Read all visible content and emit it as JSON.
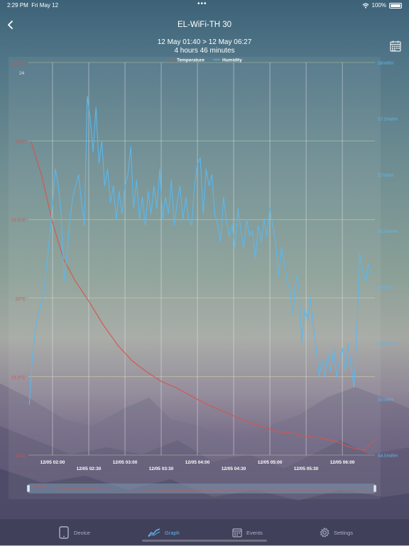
{
  "status": {
    "time": "2:29 PM",
    "date": "Fri May 12",
    "dots": "•••",
    "battery": "100%"
  },
  "nav": {
    "title": "EL-WiFi-TH 30",
    "back_icon": "chevron-left-icon"
  },
  "range": {
    "line1": "12 May  01:40 > 12 May  06:27",
    "line2": "4 hours 46 minutes"
  },
  "calendar_icon": "calendar-icon",
  "colors": {
    "temperature": "#d6544e",
    "humidity": "#5ab8ee",
    "grid": "#d8e2a8",
    "active_tab": "#5fb3e8",
    "inactive_tab": "#a9b1c3"
  },
  "tabs": [
    {
      "label": "Device",
      "icon": "tablet-icon"
    },
    {
      "label": "Graph",
      "icon": "chart-line-icon",
      "active": true
    },
    {
      "label": "Events",
      "icon": "calendar-icon"
    },
    {
      "label": "Settings",
      "icon": "gear-icon"
    }
  ],
  "chart_data": {
    "type": "line",
    "legend": [
      "Temperature",
      "Humidity"
    ],
    "legend_position": "top-center",
    "grid": true,
    "x_ticks": [
      "12/05 02:00",
      "12/05 02:30",
      "12/05 03:00",
      "12/05 03:30",
      "12/05 04:00",
      "12/05 04:30",
      "12/05 05:00",
      "12/05 05:30",
      "12/05 06:00"
    ],
    "x_range_hours": [
      1.667,
      6.45
    ],
    "x_tick_hours": [
      2.0,
      2.5,
      3.0,
      3.5,
      4.0,
      4.5,
      5.0,
      5.5,
      6.0
    ],
    "y_left_ticks": [
      "23.5°C",
      "23°C",
      "22.5°C",
      "22°C",
      "21.5°C",
      "21°C"
    ],
    "y_left_extra": "24",
    "y_left_range": [
      21,
      23.5
    ],
    "y_right_ticks": [
      "58%RH",
      "57.5%RH",
      "57%RH",
      "56.5%RH",
      "56%RH",
      "55.5%RH",
      "55%RH",
      "54.5%RH"
    ],
    "y_right_range": [
      54.5,
      58
    ],
    "series": [
      {
        "name": "Temperature",
        "axis": "left",
        "x": [
          1.7,
          1.85,
          2.0,
          2.15,
          2.3,
          2.5,
          2.7,
          2.9,
          3.1,
          3.3,
          3.5,
          3.7,
          3.9,
          4.1,
          4.3,
          4.5,
          4.7,
          4.9,
          5.1,
          5.3,
          5.5,
          5.7,
          5.9,
          6.1,
          6.3,
          6.45
        ],
        "y": [
          23.0,
          22.78,
          22.48,
          22.25,
          22.12,
          21.98,
          21.83,
          21.7,
          21.6,
          21.53,
          21.47,
          21.43,
          21.38,
          21.33,
          21.29,
          21.25,
          21.21,
          21.18,
          21.15,
          21.14,
          21.12,
          21.11,
          21.09,
          21.05,
          21.03,
          21.1
        ]
      },
      {
        "name": "Humidity",
        "axis": "right",
        "x": [
          1.68,
          1.72,
          1.76,
          1.8,
          1.84,
          1.88,
          1.92,
          1.96,
          2.0,
          2.04,
          2.08,
          2.12,
          2.16,
          2.2,
          2.24,
          2.28,
          2.32,
          2.36,
          2.4,
          2.44,
          2.48,
          2.52,
          2.56,
          2.6,
          2.64,
          2.68,
          2.72,
          2.76,
          2.8,
          2.84,
          2.88,
          2.92,
          2.96,
          3.0,
          3.04,
          3.08,
          3.12,
          3.16,
          3.2,
          3.24,
          3.28,
          3.32,
          3.36,
          3.4,
          3.44,
          3.48,
          3.52,
          3.56,
          3.6,
          3.64,
          3.68,
          3.72,
          3.76,
          3.8,
          3.84,
          3.88,
          3.92,
          3.96,
          4.0,
          4.04,
          4.08,
          4.12,
          4.16,
          4.2,
          4.24,
          4.28,
          4.32,
          4.36,
          4.4,
          4.44,
          4.48,
          4.52,
          4.56,
          4.6,
          4.64,
          4.68,
          4.72,
          4.76,
          4.8,
          4.84,
          4.88,
          4.92,
          4.96,
          5.0,
          5.04,
          5.08,
          5.12,
          5.16,
          5.2,
          5.24,
          5.28,
          5.32,
          5.36,
          5.4,
          5.44,
          5.48,
          5.52,
          5.56,
          5.6,
          5.64,
          5.68,
          5.72,
          5.76,
          5.8,
          5.84,
          5.88,
          5.92,
          5.96,
          6.0,
          6.04,
          6.08,
          6.12,
          6.16,
          6.2,
          6.24,
          6.28,
          6.32,
          6.36,
          6.4
        ],
        "y": [
          54.95,
          55.35,
          55.6,
          55.75,
          55.85,
          55.95,
          56.2,
          56.45,
          56.75,
          57.05,
          56.9,
          56.65,
          56.05,
          56.3,
          56.6,
          56.8,
          56.9,
          57.0,
          56.75,
          56.55,
          57.7,
          57.5,
          57.2,
          57.6,
          57.1,
          57.3,
          56.9,
          57.05,
          56.75,
          56.9,
          56.6,
          56.85,
          56.65,
          56.9,
          57.0,
          57.25,
          56.7,
          56.95,
          56.6,
          56.8,
          56.55,
          56.85,
          56.65,
          56.9,
          56.7,
          57.05,
          56.6,
          56.8,
          56.65,
          56.95,
          56.55,
          56.75,
          56.9,
          56.6,
          56.8,
          56.6,
          56.55,
          56.9,
          57.1,
          57.15,
          56.65,
          57.05,
          56.9,
          57.0,
          56.65,
          56.55,
          56.4,
          56.8,
          56.6,
          56.45,
          56.55,
          56.35,
          56.7,
          56.5,
          56.35,
          56.6,
          56.45,
          56.5,
          56.25,
          56.55,
          56.4,
          56.6,
          56.45,
          56.7,
          56.55,
          56.4,
          56.1,
          56.35,
          56.2,
          56.05,
          55.95,
          55.75,
          56.1,
          56.0,
          55.5,
          55.8,
          55.7,
          55.9,
          55.65,
          55.45,
          55.2,
          55.35,
          55.2,
          55.4,
          55.25,
          55.45,
          55.2,
          55.35,
          55.45,
          55.25,
          55.5,
          55.3,
          55.1,
          55.6,
          56.3,
          56.15,
          56.05,
          56.2,
          56.1
        ]
      }
    ]
  }
}
